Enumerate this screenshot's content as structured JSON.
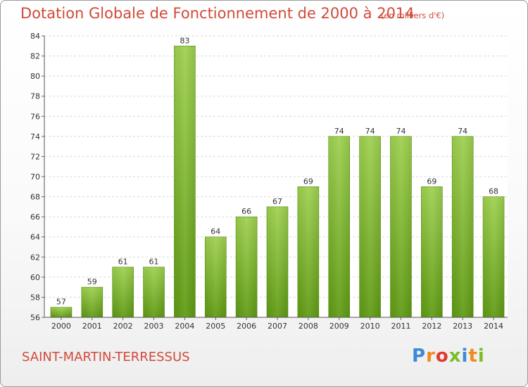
{
  "header": {
    "title": "Dotation Globale de Fonctionnement de 2000 à 2014",
    "unit": "(en milliers d'€)"
  },
  "footer": {
    "commune": "SAINT-MARTIN-TERRESSUS",
    "logo": "Proxiti"
  },
  "colors": {
    "title": "#d04a3a",
    "bar_light": "#9ed04f",
    "bar_dark": "#5e9a12",
    "logo": [
      "#3a8ad8",
      "#f08a1c",
      "#e03a2c",
      "#7cbc28",
      "#3a8ad8",
      "#f08a1c",
      "#7cbc28"
    ]
  },
  "chart_data": {
    "type": "bar",
    "title": "Dotation Globale de Fonctionnement de 2000 à 2014",
    "xlabel": "",
    "ylabel": "",
    "ylim": [
      56,
      84
    ],
    "yticks": [
      56,
      58,
      60,
      62,
      64,
      66,
      68,
      70,
      72,
      74,
      76,
      78,
      80,
      82,
      84
    ],
    "grid": true,
    "categories": [
      "2000",
      "2001",
      "2002",
      "2003",
      "2004",
      "2005",
      "2006",
      "2007",
      "2008",
      "2009",
      "2010",
      "2011",
      "2012",
      "2013",
      "2014"
    ],
    "values": [
      57,
      59,
      61,
      61,
      83,
      64,
      66,
      67,
      69,
      74,
      74,
      74,
      69,
      74,
      68
    ]
  }
}
